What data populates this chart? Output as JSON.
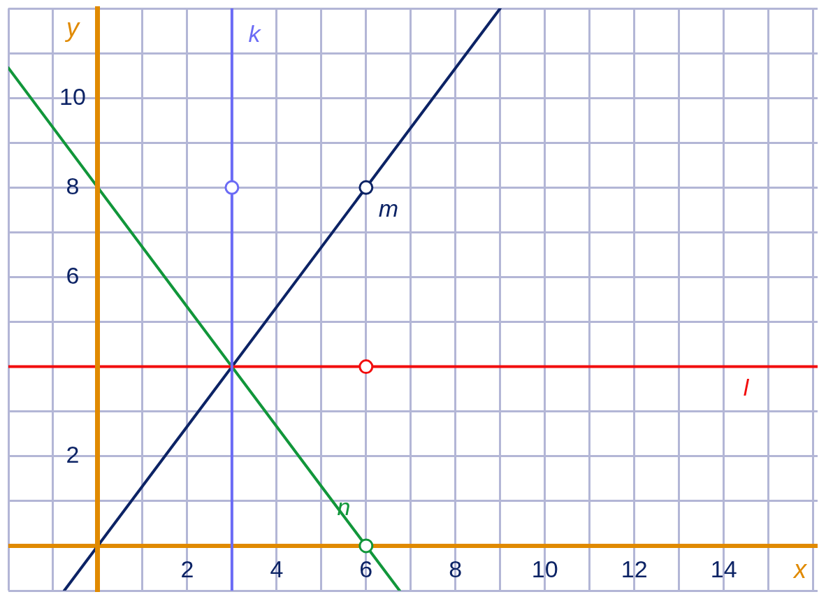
{
  "chart_data": {
    "type": "line",
    "xlabel": "x",
    "ylabel": "y",
    "xlim": [
      -2,
      16.1
    ],
    "ylim": [
      -1,
      12
    ],
    "xticks": [
      {
        "value": -2,
        "label": null
      },
      {
        "value": -1,
        "label": null
      },
      {
        "value": 0,
        "label": null
      },
      {
        "value": 1,
        "label": null
      },
      2,
      {
        "value": 3,
        "label": null
      },
      4,
      {
        "value": 5,
        "label": null
      },
      6,
      {
        "value": 7,
        "label": null
      },
      8,
      {
        "value": 9,
        "label": null
      },
      10,
      {
        "value": 11,
        "label": null
      },
      12,
      {
        "value": 13,
        "label": null
      },
      14,
      {
        "value": 15,
        "label": null
      },
      {
        "value": 16,
        "label": null
      }
    ],
    "yticks": [
      {
        "value": -1,
        "label": null
      },
      {
        "value": 0,
        "label": null
      },
      {
        "value": 1,
        "label": null
      },
      2,
      {
        "value": 3,
        "label": null
      },
      {
        "value": 4,
        "label": null
      },
      {
        "value": 5,
        "label": null
      },
      6,
      {
        "value": 7,
        "label": null
      },
      8,
      {
        "value": 9,
        "label": null
      },
      10,
      {
        "value": 11,
        "label": null
      },
      {
        "value": 12,
        "label": null
      }
    ],
    "ref_lines": [
      {
        "axis": "y",
        "value": 0,
        "color": "#e08a00"
      }
    ],
    "grid": true,
    "legend": false,
    "marker": "none",
    "line_style": "solid",
    "series": [
      {
        "name": "k",
        "color": "#6b6bf5",
        "x": [
          3,
          3,
          3
        ],
        "values": [
          -1,
          11.9,
          12
        ]
      },
      {
        "name": "l",
        "color": "#f20d0d",
        "x": [
          -2,
          14,
          16.1
        ],
        "values": [
          4,
          4,
          4
        ]
      },
      {
        "name": "m",
        "color": "#0c2365",
        "x": [
          -0.75,
          6,
          9
        ],
        "values": [
          -1,
          8,
          12
        ]
      },
      {
        "name": "n",
        "color": "#11963a",
        "x": [
          -2,
          5,
          6.75
        ],
        "values": [
          10.67,
          1.33,
          -1
        ]
      },
      {
        "type": "scatter",
        "marker": "circle",
        "color": "#6b6bf5",
        "x": [
          3
        ],
        "values": [
          8
        ]
      },
      {
        "type": "scatter",
        "marker": "circle",
        "color": "#0c2365",
        "x": [
          6
        ],
        "values": [
          8
        ]
      },
      {
        "type": "scatter",
        "marker": "circle",
        "color": "#f20d0d",
        "x": [
          6
        ],
        "values": [
          4
        ]
      },
      {
        "type": "scatter",
        "marker": "circle",
        "color": "#11963a",
        "x": [
          6
        ],
        "values": [
          0
        ]
      }
    ]
  }
}
